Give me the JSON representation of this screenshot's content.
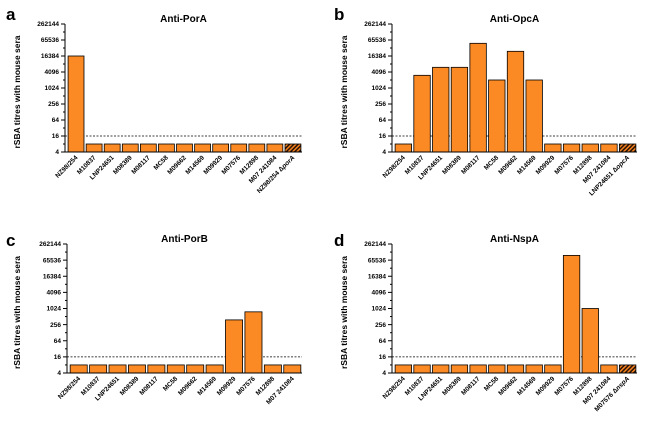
{
  "chart_data": [
    {
      "type": "bar",
      "letter": "a",
      "title": "Anti-PorA",
      "ylabel": "rSBA titres with mouse sera",
      "yscale": "log2",
      "ylim": [
        4,
        262144
      ],
      "yticks": [
        4,
        16,
        64,
        256,
        1024,
        4096,
        16384,
        65536,
        262144
      ],
      "yticks_minor": [
        8,
        32,
        128,
        512,
        2048,
        8192,
        32768,
        131072
      ],
      "threshold": 16,
      "categories": [
        "NZ98/254",
        "M10837",
        "LNP24651",
        "M08389",
        "M08117",
        "MC58",
        "M09662",
        "M14569",
        "M09929",
        "M07576",
        "M12898",
        "M07 241084",
        "NZ98/254 ΔporA"
      ],
      "italic_suffix": [
        null,
        null,
        null,
        null,
        null,
        null,
        null,
        null,
        null,
        null,
        null,
        null,
        "porA"
      ],
      "values": [
        16384,
        8,
        8,
        8,
        8,
        8,
        8,
        8,
        8,
        8,
        8,
        8,
        8
      ],
      "hatched": [
        false,
        false,
        false,
        false,
        false,
        false,
        false,
        false,
        false,
        false,
        false,
        false,
        true
      ]
    },
    {
      "type": "bar",
      "letter": "b",
      "title": "Anti-OpcA",
      "ylabel": "rSBA titres with mouse sera",
      "yscale": "log2",
      "ylim": [
        4,
        262144
      ],
      "yticks": [
        4,
        16,
        64,
        256,
        1024,
        4096,
        16384,
        65536,
        262144
      ],
      "yticks_minor": [
        8,
        32,
        128,
        512,
        2048,
        8192,
        32768,
        131072
      ],
      "threshold": 16,
      "categories": [
        "NZ98/254",
        "M10837",
        "LNP24651",
        "M08389",
        "M08117",
        "MC58",
        "M09662",
        "M14569",
        "M09929",
        "M07576",
        "M12898",
        "M07 241084",
        "LNP24651 ΔopcA"
      ],
      "italic_suffix": [
        null,
        null,
        null,
        null,
        null,
        null,
        null,
        null,
        null,
        null,
        null,
        null,
        "opcA"
      ],
      "values": [
        8,
        3072,
        6144,
        6144,
        49152,
        2048,
        24576,
        2048,
        8,
        8,
        8,
        8,
        8
      ],
      "hatched": [
        false,
        false,
        false,
        false,
        false,
        false,
        false,
        false,
        false,
        false,
        false,
        false,
        true
      ]
    },
    {
      "type": "bar",
      "letter": "c",
      "title": "Anti-PorB",
      "ylabel": "rSBA titres with mouse sera",
      "yscale": "log2",
      "ylim": [
        4,
        262144
      ],
      "yticks": [
        4,
        16,
        64,
        256,
        1024,
        4096,
        16384,
        65536,
        262144
      ],
      "yticks_minor": [
        8,
        32,
        128,
        512,
        2048,
        8192,
        32768,
        131072
      ],
      "threshold": 16,
      "categories": [
        "NZ98/254",
        "M10837",
        "LNP24651",
        "M08389",
        "M08117",
        "MC58",
        "M09662",
        "M14569",
        "M09929",
        "M07576",
        "M12898",
        "M07 241084"
      ],
      "italic_suffix": [
        null,
        null,
        null,
        null,
        null,
        null,
        null,
        null,
        null,
        null,
        null,
        null
      ],
      "values": [
        8,
        8,
        8,
        8,
        8,
        8,
        8,
        8,
        384,
        768,
        8,
        8
      ],
      "hatched": [
        false,
        false,
        false,
        false,
        false,
        false,
        false,
        false,
        false,
        false,
        false,
        false
      ]
    },
    {
      "type": "bar",
      "letter": "d",
      "title": "Anti-NspA",
      "ylabel": "rSBA titres with mouse sera",
      "yscale": "log2",
      "ylim": [
        4,
        262144
      ],
      "yticks": [
        4,
        16,
        64,
        256,
        1024,
        4096,
        16384,
        65536,
        262144
      ],
      "yticks_minor": [
        8,
        32,
        128,
        512,
        2048,
        8192,
        32768,
        131072
      ],
      "threshold": 16,
      "categories": [
        "NZ98/254",
        "M10837",
        "LNP24651",
        "M08389",
        "M08117",
        "MC58",
        "M09662",
        "M14569",
        "M09929",
        "M07576",
        "M12898",
        "M07 241084",
        "M07576 ΔnspA"
      ],
      "italic_suffix": [
        null,
        null,
        null,
        null,
        null,
        null,
        null,
        null,
        null,
        null,
        null,
        null,
        "nspA"
      ],
      "values": [
        8,
        8,
        8,
        8,
        8,
        8,
        8,
        8,
        8,
        98304,
        1024,
        8,
        8
      ],
      "hatched": [
        false,
        false,
        false,
        false,
        false,
        false,
        false,
        false,
        false,
        false,
        false,
        false,
        true
      ]
    }
  ],
  "colors": {
    "bar_fill": "#fb8a24",
    "hatch_dark": "#2b1303",
    "hatch_light": "#f48120",
    "axis": "#000000"
  }
}
